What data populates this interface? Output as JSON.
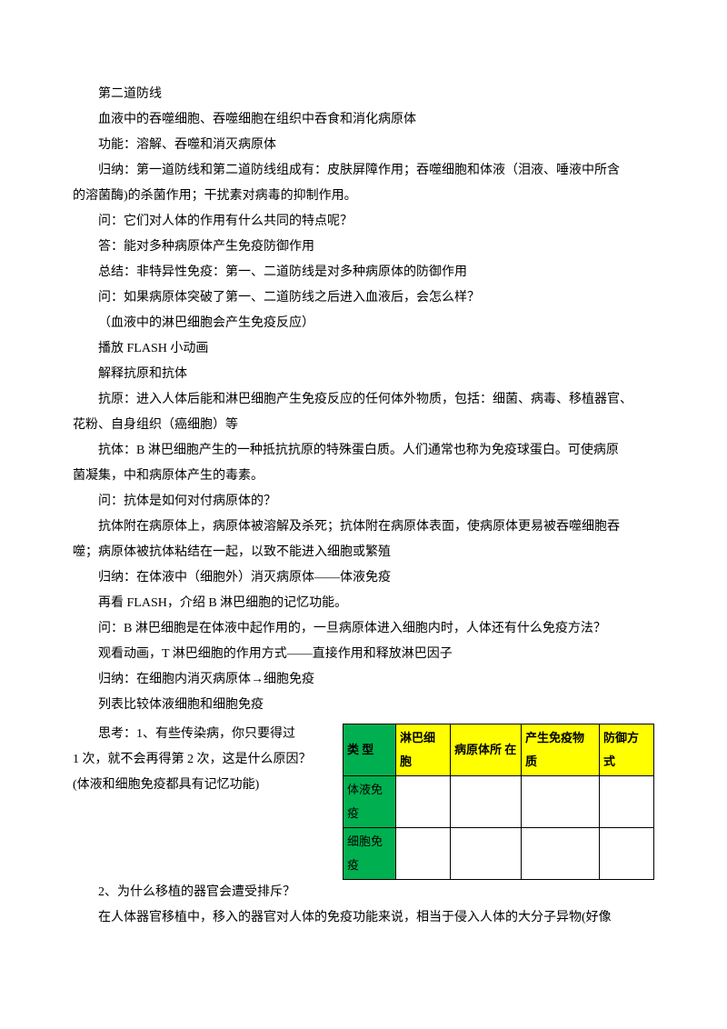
{
  "lines": {
    "l1": "第二道防线",
    "l2": "血液中的吞噬细胞、吞噬细胞在组织中吞食和消化病原体",
    "l3": "功能：溶解、吞噬和消灭病原体",
    "l4a": "归纳：第一道防线和第二道防线组成有：皮肤屏障作用；吞噬细胞和体液（泪液、唾液中所含",
    "l4b": "的溶菌酶)的杀菌作用；干扰素对病毒的抑制作用。",
    "l5": "问：它们对人体的作用有什么共同的特点呢？",
    "l6": "答：能对多种病原体产生免疫防御作用",
    "l7": "总结：非特异性免疫：第一、二道防线是对多种病原体的防御作用",
    "l8": "问：如果病原体突破了第一、二道防线之后进入血液后，会怎么样？",
    "l9": "（血液中的淋巴细胞会产生免疫反应）",
    "l10": "播放 FLASH 小动画",
    "l11": "解释抗原和抗体",
    "l12a": "抗原：进入人体后能和淋巴细胞产生免疫反应的任何体外物质，包括：细菌、病毒、移植器官、",
    "l12b": "花粉、自身组织（癌细胞）等",
    "l13a": "抗体：B 淋巴细胞产生的一种抵抗抗原的特殊蛋白质。人们通常也称为免疫球蛋白。可使病原",
    "l13b": "菌凝集，中和病原体产生的毒素。",
    "l14": "问：抗体是如何对付病原体的？",
    "l15a": "抗体附在病原体上，病原体被溶解及杀死；抗体附在病原体表面，使病原体更易被吞噬细胞吞",
    "l15b": "噬；病原体被抗体粘结在一起，以致不能进入细胞或繁殖",
    "l16": "归纳：在体液中（细胞外）消灭病原体——体液免疫",
    "l17": "再看 FLASH，介绍 B 淋巴细胞的记忆功能。",
    "l18": "问：B 淋巴细胞是在体液中起作用的，一旦病原体进入细胞内时，人体还有什么免疫方法？",
    "l19": "观看动画，T 淋巴细胞的作用方式——直接作用和释放淋巴因子",
    "l20": "归纳：在细胞内消灭病原体→细胞免疫",
    "l21": "列表比较体液细胞和细胞免疫",
    "l22": "思考：1、有些传染病，你只要得过",
    "l23": "1 次，就不会再得第 2 次，这是什么原因？",
    "l24": "(体液和细胞免疫都具有记忆功能)",
    "l25": "2、为什么移植的器官会遭受排斥？",
    "l26": "在人体器官移植中，移入的器官对人体的免疫功能来说，相当于侵入人体的大分子异物(好像"
  },
  "table": {
    "headers": {
      "type": "类  型",
      "cell": "淋巴细胞",
      "loc": "病原体所  在",
      "sub": "产生免疫物质",
      "def": "防御方式"
    },
    "rows": {
      "r1": "体液免疫",
      "r2": "细胞免疫"
    },
    "colors": {
      "green": "#00b050",
      "yellow": "#ffff00",
      "border": "#000000"
    }
  }
}
